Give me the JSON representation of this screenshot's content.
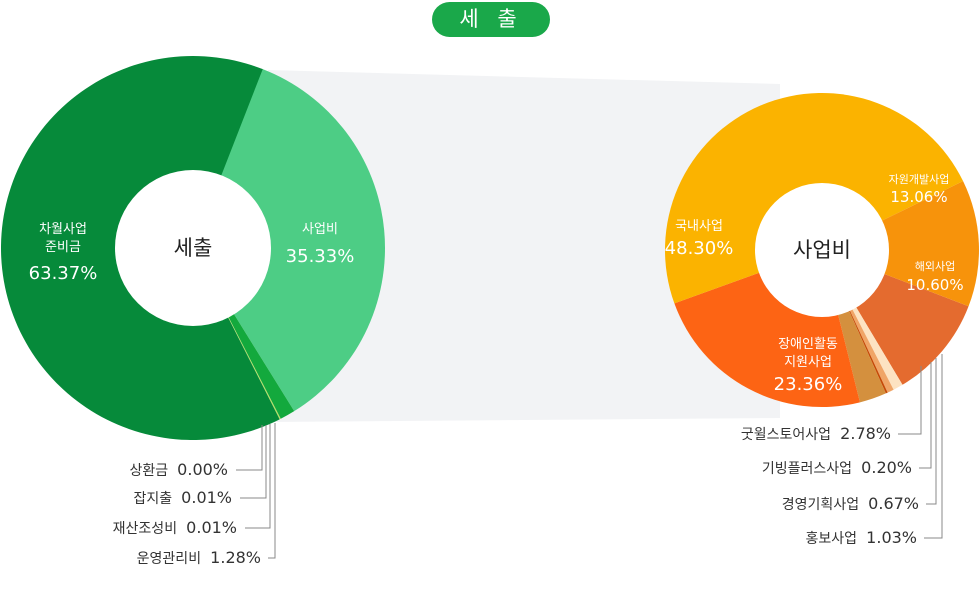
{
  "header": {
    "title": "세 출"
  },
  "chart_data": [
    {
      "type": "pie",
      "center_label": "세출",
      "slices": [
        {
          "name": "차월사업 준비금",
          "value": 63.37,
          "color": "#068a3a"
        },
        {
          "name": "사업비",
          "value": 35.33,
          "color": "#4dcd85"
        },
        {
          "name": "운영관리비",
          "value": 1.28,
          "color": "#13a93d"
        },
        {
          "name": "재산조성비",
          "value": 0.01,
          "color": "#5cbf3a"
        },
        {
          "name": "잡지출",
          "value": 0.01,
          "color": "#8fd24b"
        },
        {
          "name": "상환금",
          "value": 0.0,
          "color": "#b7e05a"
        }
      ]
    },
    {
      "type": "pie",
      "center_label": "사업비",
      "slices": [
        {
          "name": "국내사업",
          "value": 48.3,
          "color": "#fbb300"
        },
        {
          "name": "자원개발사업",
          "value": 13.06,
          "color": "#f7930b"
        },
        {
          "name": "해외사업",
          "value": 10.6,
          "color": "#e46b2f"
        },
        {
          "name": "홍보사업",
          "value": 1.03,
          "color": "#fde3c2"
        },
        {
          "name": "경영기획사업",
          "value": 0.67,
          "color": "#f0a567"
        },
        {
          "name": "기빙플러스사업",
          "value": 0.2,
          "color": "#c64a06"
        },
        {
          "name": "굿윌스토어사업",
          "value": 2.78,
          "color": "#d4903e"
        },
        {
          "name": "장애인활동 지원사업",
          "value": 23.36,
          "color": "#fd6414"
        }
      ]
    }
  ],
  "labels": {
    "pie1": {
      "reserve_line1": "차월사업",
      "reserve_line2": "준비금",
      "reserve_pct": "63.37%",
      "project_name": "사업비",
      "project_pct": "35.33%"
    },
    "pie1_external": [
      {
        "name": "상환금",
        "pct": "0.00%"
      },
      {
        "name": "잡지출",
        "pct": "0.01%"
      },
      {
        "name": "재산조성비",
        "pct": "0.01%"
      },
      {
        "name": "운영관리비",
        "pct": "1.28%"
      }
    ],
    "pie2": {
      "domestic_name": "국내사업",
      "domestic_pct": "48.30%",
      "resource_name": "자원개발사업",
      "resource_pct": "13.06%",
      "overseas_name": "해외사업",
      "overseas_pct": "10.60%",
      "disability_line1": "장애인활동",
      "disability_line2": "지원사업",
      "disability_pct": "23.36%"
    },
    "pie2_external": [
      {
        "name": "굿윌스토어사업",
        "pct": "2.78%"
      },
      {
        "name": "기빙플러스사업",
        "pct": "0.20%"
      },
      {
        "name": "경영기획사업",
        "pct": "0.67%"
      },
      {
        "name": "홍보사업",
        "pct": "1.03%"
      }
    ]
  }
}
